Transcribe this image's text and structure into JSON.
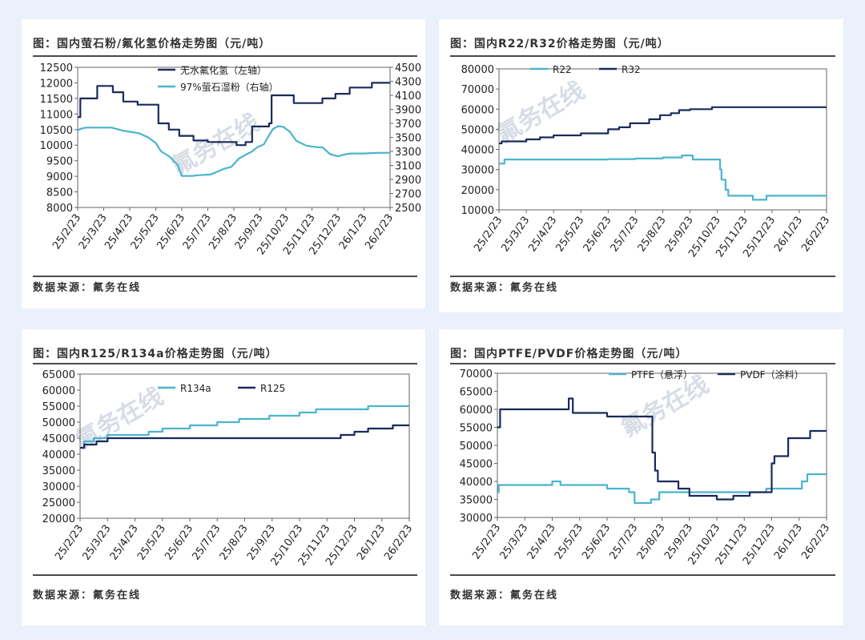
{
  "charts": [
    {
      "title": "图：国内萤石粉/氟化氢价格走势图（元/吨）",
      "source": "数据来源：氟务在线",
      "watermark": "氟务在线",
      "chart_data": {
        "type": "line",
        "categories": [
          "25/2/23",
          "25/3/23",
          "25/4/23",
          "25/5/23",
          "25/6/23",
          "25/7/23",
          "25/8/23",
          "25/9/23",
          "25/10/23",
          "25/11/23",
          "25/12/23",
          "26/1/23",
          "26/2/23"
        ],
        "ylim_left": [
          8000,
          12500
        ],
        "yticks_left": [
          8000,
          8500,
          9000,
          9500,
          10000,
          10500,
          11000,
          11500,
          12000,
          12500
        ],
        "ylim_right": [
          2500,
          4500
        ],
        "yticks_right": [
          2500,
          2700,
          2900,
          3100,
          3300,
          3500,
          3700,
          3900,
          4100,
          4300,
          4500
        ],
        "series": [
          {
            "name": "无水氟化氢（左轴）",
            "axis": "left",
            "color": "#1b2a5c",
            "step": true,
            "x": [
              0,
              0.1,
              0.75,
              1.35,
              1.75,
              2.0,
              2.3,
              3.1,
              3.5,
              3.9,
              4.45,
              4.85,
              5.0,
              6.1,
              6.45,
              6.7,
              7.35,
              7.45,
              7.9,
              8.3,
              8.7,
              9.4,
              9.9,
              10.3,
              10.45,
              11.0,
              11.3,
              12.0
            ],
            "y": [
              10900,
              11500,
              11900,
              11700,
              11400,
              11400,
              11300,
              10700,
              10500,
              10300,
              10150,
              10150,
              10100,
              10000,
              10100,
              10600,
              10700,
              11600,
              11600,
              11350,
              11350,
              11500,
              11650,
              11650,
              11850,
              11850,
              12000,
              12000
            ]
          },
          {
            "name": "97%萤石湿粉（右轴）",
            "axis": "right",
            "color": "#4bb4cc",
            "step": false,
            "x": [
              0,
              0.1,
              0.3,
              1.3,
              1.7,
              2.0,
              2.35,
              2.7,
              3.0,
              3.2,
              3.55,
              3.85,
              4.0,
              4.4,
              4.6,
              5.1,
              5.3,
              5.6,
              5.9,
              6.2,
              6.45,
              6.7,
              6.9,
              7.15,
              7.3,
              7.5,
              7.7,
              7.9,
              8.15,
              8.4,
              8.8,
              9.2,
              9.4,
              9.7,
              10.0,
              10.3,
              10.5,
              11.0,
              11.5,
              12.0
            ],
            "y": [
              3600,
              3620,
              3640,
              3640,
              3600,
              3580,
              3560,
              3500,
              3420,
              3300,
              3220,
              3100,
              2950,
              2950,
              2960,
              2970,
              3000,
              3050,
              3080,
              3200,
              3250,
              3300,
              3360,
              3400,
              3500,
              3620,
              3660,
              3650,
              3580,
              3450,
              3380,
              3360,
              3360,
              3260,
              3230,
              3260,
              3270,
              3270,
              3280,
              3280
            ]
          }
        ]
      }
    },
    {
      "title": "图：国内R22/R32价格走势图（元/吨）",
      "source": "数据来源：氟务在线",
      "watermark": "氟务在线",
      "chart_data": {
        "type": "line",
        "categories": [
          "25/2/23",
          "25/3/23",
          "25/4/23",
          "25/5/23",
          "25/6/23",
          "25/7/23",
          "25/8/23",
          "25/9/23",
          "25/10/23",
          "25/11/23",
          "25/12/23",
          "26/1/23",
          "26/2/23"
        ],
        "ylim": [
          10000,
          80000
        ],
        "yticks": [
          10000,
          20000,
          30000,
          40000,
          50000,
          60000,
          70000,
          80000
        ],
        "series": [
          {
            "name": "R22",
            "color": "#4bb4cc",
            "step": true,
            "x": [
              0,
              0.2,
              1.0,
              2.0,
              3.0,
              4.0,
              5.0,
              6.0,
              6.3,
              6.7,
              7.1,
              7.5,
              7.9,
              8.1,
              8.15,
              8.3,
              8.4,
              8.6,
              9.0,
              9.3,
              9.8,
              10.5,
              11.0,
              12.0
            ],
            "y": [
              33000,
              35000,
              35000,
              35000,
              35000,
              35200,
              35500,
              36000,
              36000,
              37000,
              35000,
              35000,
              35000,
              30000,
              25000,
              20000,
              17000,
              17000,
              17000,
              15000,
              17000,
              17000,
              17000,
              17000
            ]
          },
          {
            "name": "R32",
            "color": "#1b2a5c",
            "step": true,
            "x": [
              0,
              0.1,
              0.6,
              1.0,
              1.5,
              2.0,
              2.5,
              3.0,
              3.5,
              4.0,
              4.4,
              4.8,
              5.3,
              5.5,
              5.9,
              6.3,
              6.6,
              7.0,
              7.4,
              7.8,
              8.2,
              9.0,
              10.0,
              11.0,
              12.0
            ],
            "y": [
              43000,
              44000,
              44000,
              45000,
              46000,
              47000,
              47000,
              48000,
              48000,
              50000,
              51000,
              53000,
              53000,
              55000,
              57000,
              58000,
              59500,
              60000,
              60000,
              61000,
              61000,
              61000,
              61000,
              61000,
              61000
            ]
          }
        ]
      }
    },
    {
      "title": "图：国内R125/R134a价格走势图（元/吨）",
      "source": "数据来源：氟务在线",
      "watermark": "氟务在线",
      "chart_data": {
        "type": "line",
        "categories": [
          "25/2/23",
          "25/3/23",
          "25/4/23",
          "25/5/23",
          "25/6/23",
          "25/7/23",
          "25/8/23",
          "25/9/23",
          "25/10/23",
          "25/11/23",
          "25/12/23",
          "26/1/23",
          "26/2/23"
        ],
        "ylim": [
          20000,
          65000
        ],
        "yticks": [
          20000,
          25000,
          30000,
          35000,
          40000,
          45000,
          50000,
          55000,
          60000,
          65000
        ],
        "series": [
          {
            "name": "R134a",
            "color": "#4bb4cc",
            "step": true,
            "x": [
              0,
              0.15,
              0.5,
              1.0,
              2.5,
              3.0,
              3.5,
              4.0,
              4.5,
              5.0,
              5.3,
              5.8,
              6.3,
              6.9,
              7.5,
              8.0,
              8.3,
              8.6,
              8.8,
              9.0,
              9.3,
              10.0,
              10.5,
              11.0,
              12.0
            ],
            "y": [
              42000,
              44000,
              45000,
              46000,
              47000,
              48000,
              48000,
              49000,
              49000,
              50000,
              50000,
              51000,
              51000,
              52000,
              52000,
              53000,
              53000,
              54000,
              54000,
              54000,
              54000,
              54000,
              55000,
              55000,
              55000
            ]
          },
          {
            "name": "R125",
            "color": "#1b2a5c",
            "step": true,
            "x": [
              0,
              0.15,
              0.6,
              1.0,
              2.0,
              3.0,
              4.0,
              5.0,
              6.0,
              7.0,
              8.0,
              9.0,
              9.5,
              10.0,
              10.5,
              11.0,
              11.4,
              12.0
            ],
            "y": [
              42000,
              43000,
              44000,
              45000,
              45000,
              45000,
              45000,
              45000,
              45000,
              45000,
              45000,
              45000,
              46000,
              47000,
              48000,
              48000,
              49000,
              49000
            ]
          }
        ]
      }
    },
    {
      "title": "图：国内PTFE/PVDF价格走势图（元/吨）",
      "source": "数据来源：氟务在线",
      "watermark": "氟务在线",
      "chart_data": {
        "type": "line",
        "categories": [
          "25/2/23",
          "25/3/23",
          "25/4/23",
          "25/5/23",
          "25/6/23",
          "25/7/23",
          "25/8/23",
          "25/9/23",
          "25/10/23",
          "25/11/23",
          "25/12/23",
          "26/1/23",
          "26/2/23"
        ],
        "ylim": [
          30000,
          70000
        ],
        "yticks": [
          30000,
          35000,
          40000,
          45000,
          50000,
          55000,
          60000,
          65000,
          70000
        ],
        "series": [
          {
            "name": "PTFE（悬浮）",
            "color": "#4bb4cc",
            "step": true,
            "x": [
              0,
              0.05,
              1.0,
              1.5,
              2.0,
              2.3,
              3.5,
              4.0,
              4.6,
              4.8,
              5.0,
              5.6,
              5.9,
              6.2,
              7.0,
              8.0,
              9.0,
              9.8,
              10.5,
              11.1,
              11.3,
              12.0
            ],
            "y": [
              37000,
              39000,
              39000,
              39000,
              40000,
              39000,
              39000,
              38000,
              38000,
              37000,
              34000,
              35000,
              37000,
              37000,
              37000,
              37000,
              37000,
              38000,
              38000,
              40000,
              42000,
              42000
            ]
          },
          {
            "name": "PVDF（涂料）",
            "color": "#1b2a5c",
            "step": true,
            "x": [
              0,
              0.1,
              1.5,
              2.6,
              2.75,
              4.0,
              5.0,
              5.55,
              5.65,
              5.75,
              5.85,
              6.5,
              6.6,
              7.0,
              7.3,
              7.5,
              8.0,
              8.6,
              9.2,
              9.6,
              10.0,
              10.1,
              10.6,
              10.9,
              11.4,
              12.0
            ],
            "y": [
              55000,
              60000,
              60000,
              63000,
              59000,
              58000,
              58000,
              58000,
              48000,
              43000,
              40000,
              40000,
              38000,
              36000,
              36000,
              36000,
              35000,
              36000,
              37000,
              37000,
              45000,
              47000,
              52000,
              52000,
              54000,
              54000
            ]
          }
        ]
      }
    }
  ]
}
